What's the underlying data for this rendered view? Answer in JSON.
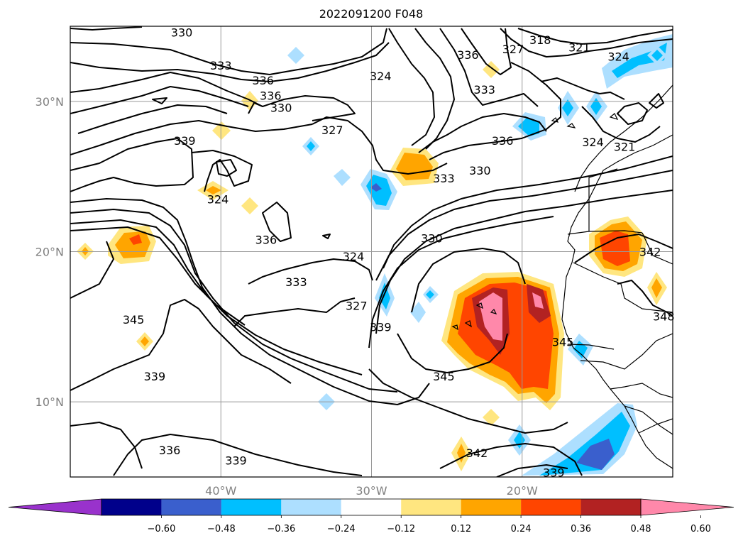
{
  "chart_data": {
    "type": "heatmap",
    "title": "2022091200 F048",
    "projection": "map",
    "x_axis": {
      "ticks": [
        "40°W",
        "30°W",
        "20°W"
      ],
      "values": [
        -40,
        -30,
        -20
      ],
      "range": [
        -50,
        -10
      ]
    },
    "y_axis": {
      "ticks": [
        "10°N",
        "20°N",
        "30°N"
      ],
      "values": [
        10,
        20,
        30
      ],
      "range": [
        5,
        35
      ]
    },
    "grid": true,
    "colorbar": {
      "orientation": "horizontal",
      "extend": "both",
      "levels": [
        -0.6,
        -0.48,
        -0.36,
        -0.24,
        -0.12,
        0.12,
        0.24,
        0.36,
        0.48,
        0.6
      ],
      "tick_labels": [
        "−0.60",
        "−0.48",
        "−0.36",
        "−0.24",
        "−0.12",
        "0.12",
        "0.24",
        "0.36",
        "0.48",
        "0.60"
      ],
      "colors": [
        "#9932cc",
        "#00008b",
        "#3a5fcd",
        "#00bfff",
        "#addfff",
        "#ffffff",
        "#ffe680",
        "#ffa500",
        "#ff4500",
        "#b22222",
        "#ff88aa"
      ]
    },
    "contour_labels": [
      {
        "text": "330",
        "lon": -42.6,
        "lat": 34.6
      },
      {
        "text": "333",
        "lon": -40.0,
        "lat": 32.4
      },
      {
        "text": "336",
        "lon": -37.2,
        "lat": 31.4
      },
      {
        "text": "336",
        "lon": -36.7,
        "lat": 30.4
      },
      {
        "text": "330",
        "lon": -36.0,
        "lat": 29.6
      },
      {
        "text": "339",
        "lon": -42.4,
        "lat": 27.4
      },
      {
        "text": "327",
        "lon": -32.6,
        "lat": 28.1
      },
      {
        "text": "324",
        "lon": -40.2,
        "lat": 23.5
      },
      {
        "text": "336",
        "lon": -37.0,
        "lat": 20.8
      },
      {
        "text": "333",
        "lon": -35.0,
        "lat": 18.0
      },
      {
        "text": "324",
        "lon": -31.2,
        "lat": 19.7
      },
      {
        "text": "345",
        "lon": -45.8,
        "lat": 15.5
      },
      {
        "text": "339",
        "lon": -44.4,
        "lat": 11.7
      },
      {
        "text": "336",
        "lon": -43.4,
        "lat": 6.8
      },
      {
        "text": "339",
        "lon": -39.0,
        "lat": 6.1
      },
      {
        "text": "324",
        "lon": -29.4,
        "lat": 31.7
      },
      {
        "text": "336",
        "lon": -23.6,
        "lat": 33.1
      },
      {
        "text": "333",
        "lon": -22.5,
        "lat": 30.8
      },
      {
        "text": "327",
        "lon": -20.6,
        "lat": 33.5
      },
      {
        "text": "318",
        "lon": -18.8,
        "lat": 34.1
      },
      {
        "text": "321",
        "lon": -16.2,
        "lat": 33.6
      },
      {
        "text": "324",
        "lon": -13.6,
        "lat": 33.0
      },
      {
        "text": "336",
        "lon": -21.3,
        "lat": 27.4
      },
      {
        "text": "330",
        "lon": -22.8,
        "lat": 25.4
      },
      {
        "text": "333",
        "lon": -25.2,
        "lat": 24.9
      },
      {
        "text": "324",
        "lon": -15.3,
        "lat": 27.3
      },
      {
        "text": "321",
        "lon": -13.2,
        "lat": 27.0
      },
      {
        "text": "330",
        "lon": -26.0,
        "lat": 20.9
      },
      {
        "text": "327",
        "lon": -31.0,
        "lat": 16.4
      },
      {
        "text": "339",
        "lon": -29.4,
        "lat": 15.0
      },
      {
        "text": "345",
        "lon": -25.2,
        "lat": 11.7
      },
      {
        "text": "345",
        "lon": -17.3,
        "lat": 14.0
      },
      {
        "text": "342",
        "lon": -11.5,
        "lat": 20.0
      },
      {
        "text": "348",
        "lon": -10.6,
        "lat": 15.7
      },
      {
        "text": "342",
        "lon": -23.0,
        "lat": 6.6
      },
      {
        "text": "339",
        "lon": -17.9,
        "lat": 5.3
      }
    ]
  }
}
